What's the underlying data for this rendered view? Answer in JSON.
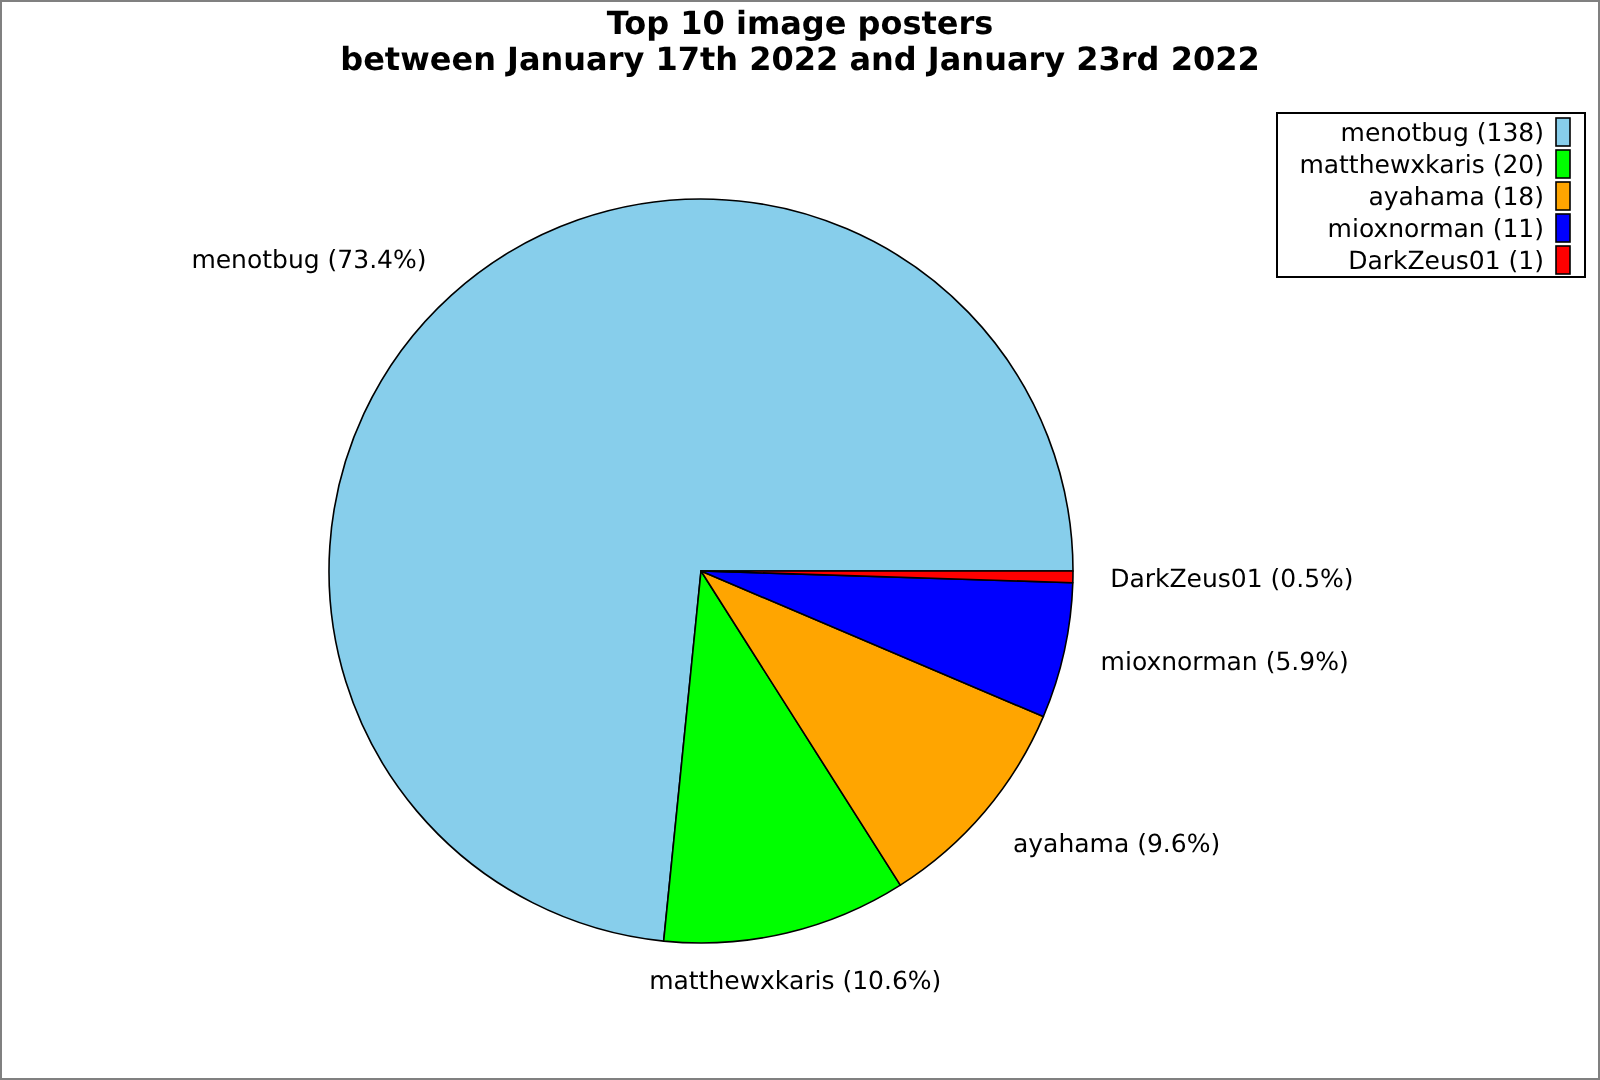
{
  "chart_data": {
    "type": "pie",
    "title": "Top 10 image posters\nbetween January 17th 2022 and January 23rd 2022",
    "categories": [
      "menotbug (138)",
      "matthewxkaris (20)",
      "ayahama (18)",
      "mioxnorman (11)",
      "DarkZeus01 (1)"
    ],
    "values": [
      73.4,
      10.6,
      9.6,
      5.9,
      0.5
    ],
    "colors": [
      "#87ceeb",
      "#00ff00",
      "#ffa500",
      "#0000ff",
      "#ff0000"
    ],
    "value_labels": [
      "menotbug (73.4%)",
      "matthewxkaris (10.6%)",
      "ayahama (9.6%)",
      "mioxnorman (5.9%)",
      "DarkZeus01 (0.5%)"
    ],
    "legend": "top right"
  }
}
